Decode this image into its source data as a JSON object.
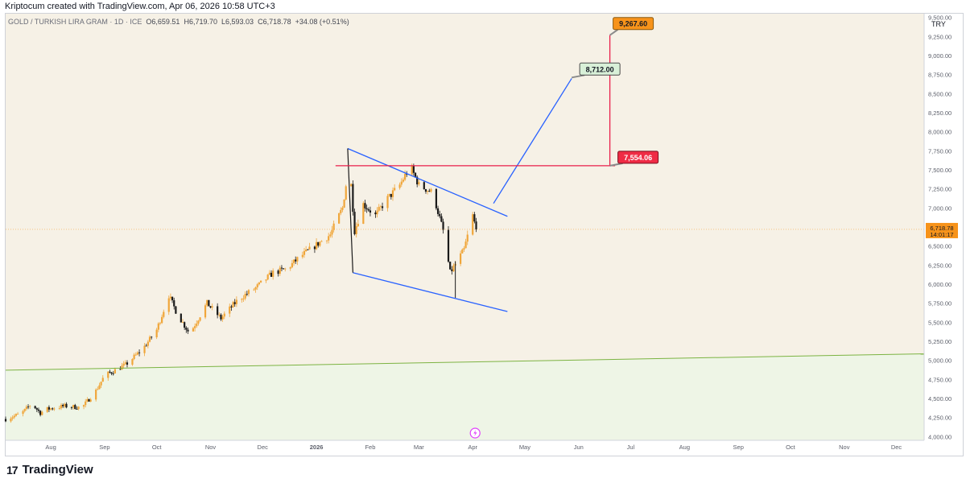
{
  "header": {
    "text": "Kriptocum created with TradingView.com, Apr 06, 2026 10:58 UTC+3"
  },
  "legend": {
    "symbol": "GOLD / TURKISH LIRA GRAM · 1D · ICE",
    "open": "O6,659.51",
    "high": "H6,719.70",
    "low": "L6,593.03",
    "close": "C6,718.78",
    "change": "+34.08 (+0.51%)"
  },
  "brand": {
    "name": "TradingView",
    "mark": "17"
  },
  "colors": {
    "zone_upper": "#f6f1e6",
    "zone_lower": "#eef5e6",
    "channel": "#2962ff",
    "resistance": "#e91e4a",
    "target_line": "#e91e4a",
    "bull": "#f0a63a",
    "bear": "#1a1a1a",
    "trend": "#7cb342",
    "price_tag": "#f7931a"
  },
  "chart_data": {
    "type": "candlestick",
    "title": "GOLD / TURKISH LIRA GRAM · 1D · ICE",
    "currency_label": "TRY",
    "last_price": "6,718.78",
    "countdown": "14:01:17",
    "ylim": [
      3950,
      9550
    ],
    "y_ticks": [
      4000,
      4250,
      4500,
      4750,
      5000,
      5250,
      5500,
      5750,
      6000,
      6250,
      6500,
      6750,
      7000,
      7250,
      7500,
      7750,
      8000,
      8250,
      8500,
      8750,
      9000,
      9250,
      9500
    ],
    "y_tick_labels": [
      "4,000.00",
      "4,250.00",
      "4,500.00",
      "4,750.00",
      "5,000.00",
      "5,250.00",
      "5,500.00",
      "5,750.00",
      "6,000.00",
      "6,250.00",
      "6,500.00",
      "6,750.00",
      "7,000.00",
      "7,250.00",
      "7,500.00",
      "7,750.00",
      "8,000.00",
      "8,250.00",
      "8,500.00",
      "8,750.00",
      "9,000.00",
      "9,250.00",
      "9,500.00"
    ],
    "x_ticks": [
      {
        "label": "Aug",
        "t": 2
      },
      {
        "label": "Sep",
        "t": 33
      },
      {
        "label": "Oct",
        "t": 63
      },
      {
        "label": "Nov",
        "t": 94
      },
      {
        "label": "Dec",
        "t": 124
      },
      {
        "label": "2026",
        "t": 155
      },
      {
        "label": "Feb",
        "t": 186
      },
      {
        "label": "Mar",
        "t": 214
      },
      {
        "label": "Apr",
        "t": 245
      },
      {
        "label": "May",
        "t": 275
      },
      {
        "label": "Jun",
        "t": 306
      },
      {
        "label": "Jul",
        "t": 336
      },
      {
        "label": "Aug",
        "t": 367
      },
      {
        "label": "Sep",
        "t": 398
      },
      {
        "label": "Oct",
        "t": 428
      },
      {
        "label": "Nov",
        "t": 459
      },
      {
        "label": "Dec",
        "t": 489
      }
    ],
    "t_range": [
      -24,
      505
    ],
    "anchors": [
      {
        "t": -24,
        "v": 4230
      },
      {
        "t": -15,
        "v": 4300
      },
      {
        "t": -9,
        "v": 4430
      },
      {
        "t": -4,
        "v": 4310
      },
      {
        "t": 0,
        "v": 4360
      },
      {
        "t": 10,
        "v": 4400
      },
      {
        "t": 20,
        "v": 4380
      },
      {
        "t": 28,
        "v": 4600
      },
      {
        "t": 33,
        "v": 4800
      },
      {
        "t": 45,
        "v": 4940
      },
      {
        "t": 55,
        "v": 5150
      },
      {
        "t": 63,
        "v": 5400
      },
      {
        "t": 70,
        "v": 5850
      },
      {
        "t": 75,
        "v": 5600
      },
      {
        "t": 82,
        "v": 5350
      },
      {
        "t": 92,
        "v": 5750
      },
      {
        "t": 100,
        "v": 5550
      },
      {
        "t": 110,
        "v": 5800
      },
      {
        "t": 120,
        "v": 5950
      },
      {
        "t": 130,
        "v": 6150
      },
      {
        "t": 138,
        "v": 6200
      },
      {
        "t": 145,
        "v": 6350
      },
      {
        "t": 154,
        "v": 6500
      },
      {
        "t": 163,
        "v": 6650
      },
      {
        "t": 170,
        "v": 7000
      },
      {
        "t": 174,
        "v": 7600
      },
      {
        "t": 177,
        "v": 6700
      },
      {
        "t": 182,
        "v": 7050
      },
      {
        "t": 189,
        "v": 6900
      },
      {
        "t": 195,
        "v": 7100
      },
      {
        "t": 203,
        "v": 7300
      },
      {
        "t": 209,
        "v": 7550
      },
      {
        "t": 214,
        "v": 7300
      },
      {
        "t": 222,
        "v": 7200
      },
      {
        "t": 228,
        "v": 6700
      },
      {
        "t": 232,
        "v": 6150
      },
      {
        "t": 236,
        "v": 6300
      },
      {
        "t": 240,
        "v": 6450
      },
      {
        "t": 245,
        "v": 6900
      },
      {
        "t": 247,
        "v": 6719
      }
    ],
    "drawings": {
      "channel_upper": [
        {
          "t": 173,
          "v": 7780
        },
        {
          "t": 265,
          "v": 6890
        }
      ],
      "channel_lower": [
        {
          "t": 176,
          "v": 6150
        },
        {
          "t": 265,
          "v": 5640
        }
      ],
      "channel_left_edge": [
        {
          "t": 173,
          "v": 7780
        },
        {
          "t": 176,
          "v": 6150
        }
      ],
      "channel_bottom_wick": [
        {
          "t": 235,
          "v": 5820
        },
        {
          "t": 235,
          "v": 6300
        }
      ],
      "breakout_projection": [
        {
          "t": 257,
          "v": 7060
        },
        {
          "t": 302,
          "v": 8700
        }
      ],
      "resistance": [
        {
          "t": 166,
          "v": 7554.06
        },
        {
          "t": 327,
          "v": 7554.06
        }
      ],
      "target_vertical": [
        {
          "t": 324,
          "v": 7554.06
        },
        {
          "t": 324,
          "v": 9267.6
        }
      ],
      "trendline": [
        {
          "t": -24,
          "v": 4870
        },
        {
          "t": 505,
          "v": 5085
        }
      ]
    },
    "annotations": [
      {
        "label": "8,712.00",
        "value": 8712.0,
        "t": 302
      },
      {
        "label": "9,267.60",
        "value": 9267.6,
        "t": 324
      },
      {
        "label": "7,554.06",
        "value": 7554.06,
        "t": 324
      }
    ]
  }
}
